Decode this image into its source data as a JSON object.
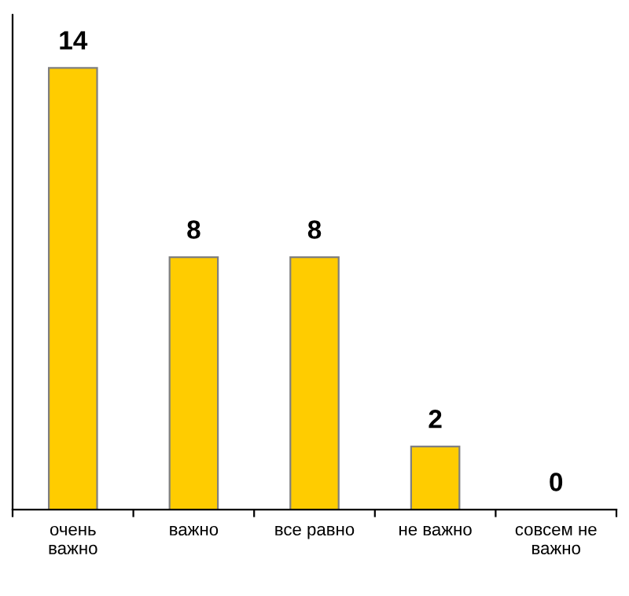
{
  "chart_data": {
    "type": "bar",
    "categories": [
      "очень важно",
      "важно",
      "все равно",
      "не важно",
      "совсем не важно"
    ],
    "values": [
      14,
      8,
      8,
      2,
      0
    ],
    "color": "#ffcc00",
    "data_labels": true,
    "grid": false,
    "legend": false
  }
}
